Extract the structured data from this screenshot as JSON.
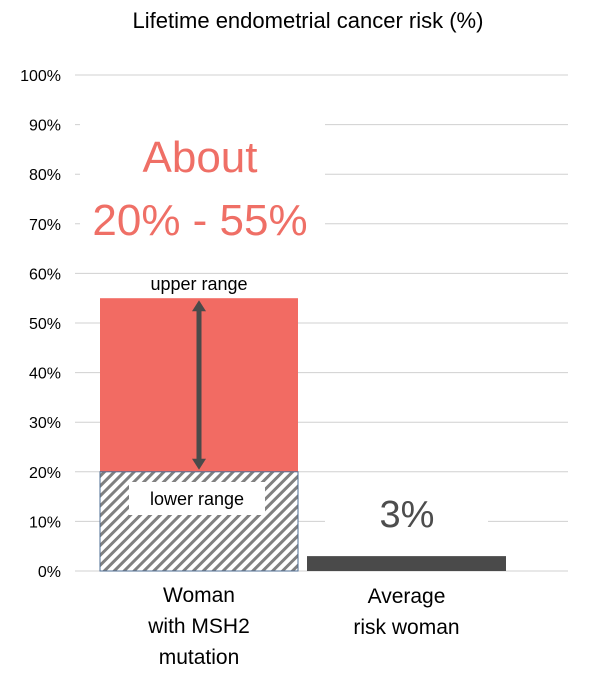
{
  "chart_data": {
    "type": "bar",
    "title": "Lifetime endometrial cancer risk (%)",
    "ylim": [
      0,
      100
    ],
    "yticks": [
      "0%",
      "10%",
      "20%",
      "30%",
      "40%",
      "50%",
      "60%",
      "70%",
      "80%",
      "90%",
      "100%"
    ],
    "grid": true,
    "legend": "none",
    "categories": [
      "Woman with MSH2 mutation",
      "Average risk woman"
    ],
    "category_lines": [
      [
        "Woman",
        "with MSH2",
        "mutation"
      ],
      [
        "Average",
        "risk woman"
      ]
    ],
    "bars": [
      {
        "category": "Woman with MSH2 mutation",
        "low": 20,
        "high": 55,
        "range": true
      },
      {
        "category": "Average risk woman",
        "value": 3,
        "label": "3%"
      }
    ],
    "annotations": {
      "range_text_line1": "About",
      "range_text_line2": "20% - 55%",
      "upper": "upper range",
      "lower": "lower range"
    },
    "colors": {
      "range_fill": "#f26b63",
      "range_text": "#ef6f66",
      "average_fill": "#4a4a4a",
      "average_label": "#4d4d4d",
      "arrow": "#4a4a4a",
      "hatch": "#808080",
      "gridline": "#d0d0d0"
    }
  }
}
